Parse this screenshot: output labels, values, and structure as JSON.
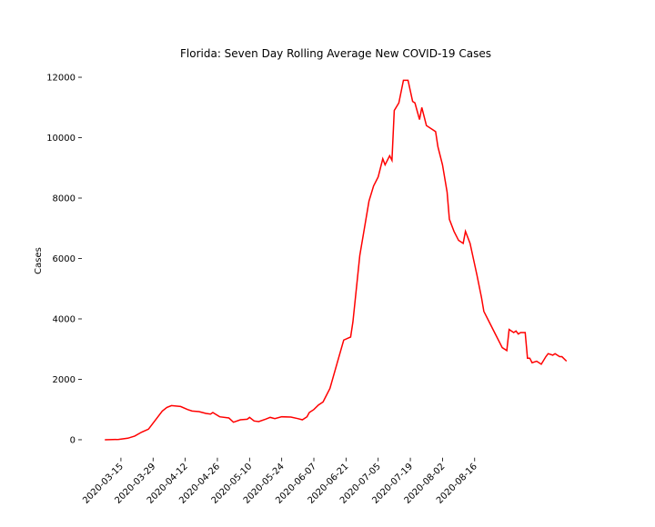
{
  "chart_data": {
    "type": "line",
    "title": "Florida: Seven Day Rolling Average New COVID-19 Cases",
    "ylabel": "Cases",
    "x": [
      "2020-03-08",
      "2020-03-14",
      "2020-03-18",
      "2020-03-21",
      "2020-03-24",
      "2020-03-27",
      "2020-03-29",
      "2020-03-31",
      "2020-04-02",
      "2020-04-04",
      "2020-04-06",
      "2020-04-10",
      "2020-04-13",
      "2020-04-15",
      "2020-04-18",
      "2020-04-21",
      "2020-04-23",
      "2020-04-24",
      "2020-04-27",
      "2020-05-01",
      "2020-05-03",
      "2020-05-06",
      "2020-05-09",
      "2020-05-10",
      "2020-05-12",
      "2020-05-14",
      "2020-05-17",
      "2020-05-19",
      "2020-05-21",
      "2020-05-24",
      "2020-05-28",
      "2020-05-31",
      "2020-06-02",
      "2020-06-04",
      "2020-06-05",
      "2020-06-07",
      "2020-06-09",
      "2020-06-11",
      "2020-06-14",
      "2020-06-17",
      "2020-06-20",
      "2020-06-23",
      "2020-06-24",
      "2020-06-27",
      "2020-06-29",
      "2020-07-01",
      "2020-07-03",
      "2020-07-05",
      "2020-07-07",
      "2020-07-08",
      "2020-07-10",
      "2020-07-11",
      "2020-07-12",
      "2020-07-14",
      "2020-07-16",
      "2020-07-18",
      "2020-07-20",
      "2020-07-21",
      "2020-07-23",
      "2020-07-24",
      "2020-07-26",
      "2020-07-28",
      "2020-07-30",
      "2020-07-31",
      "2020-08-02",
      "2020-08-04",
      "2020-08-05",
      "2020-08-07",
      "2020-08-09",
      "2020-08-11",
      "2020-08-12",
      "2020-08-14",
      "2020-08-16",
      "2020-08-17",
      "2020-08-19",
      "2020-08-20",
      "2020-08-22",
      "2020-08-23",
      "2020-08-25",
      "2020-08-27",
      "2020-08-28",
      "2020-08-30",
      "2020-08-31",
      "2020-09-02",
      "2020-09-03",
      "2020-09-04",
      "2020-09-05",
      "2020-09-07",
      "2020-09-08",
      "2020-09-09",
      "2020-09-10",
      "2020-09-12",
      "2020-09-14",
      "2020-09-16",
      "2020-09-17",
      "2020-09-19",
      "2020-09-20",
      "2020-09-22",
      "2020-09-23",
      "2020-09-25"
    ],
    "series": [
      {
        "name": "Cases",
        "color": "#ff0000",
        "values": [
          0,
          10,
          50,
          120,
          250,
          350,
          550,
          750,
          950,
          1070,
          1130,
          1100,
          1000,
          950,
          930,
          870,
          850,
          900,
          760,
          720,
          580,
          660,
          680,
          740,
          620,
          600,
          680,
          740,
          700,
          760,
          750,
          700,
          660,
          760,
          900,
          1000,
          1150,
          1250,
          1700,
          2500,
          3300,
          3400,
          3900,
          6100,
          7000,
          7900,
          8400,
          8700,
          9300,
          9100,
          9400,
          9250,
          10900,
          11150,
          11900,
          11900,
          11200,
          11150,
          10600,
          11000,
          10400,
          10300,
          10200,
          9700,
          9100,
          8200,
          7300,
          6900,
          6600,
          6500,
          6900,
          6500,
          5800,
          5450,
          4700,
          4250,
          3950,
          3800,
          3500,
          3200,
          3050,
          2950,
          3650,
          3550,
          3600,
          3500,
          3550,
          3550,
          2700,
          2700,
          2550,
          2600,
          2500,
          2750,
          2850,
          2800,
          2850,
          2750,
          2750,
          2600
        ]
      }
    ],
    "xlim": [
      "2020-02-27",
      "2020-10-05"
    ],
    "xticks": [
      "2020-03-15",
      "2020-03-29",
      "2020-04-12",
      "2020-04-26",
      "2020-05-10",
      "2020-05-24",
      "2020-06-07",
      "2020-06-21",
      "2020-07-05",
      "2020-07-19",
      "2020-08-02",
      "2020-08-16"
    ],
    "ylim": [
      -594,
      12464
    ],
    "yticks": [
      0,
      2000,
      4000,
      6000,
      8000,
      10000,
      12000
    ],
    "grid": false
  }
}
